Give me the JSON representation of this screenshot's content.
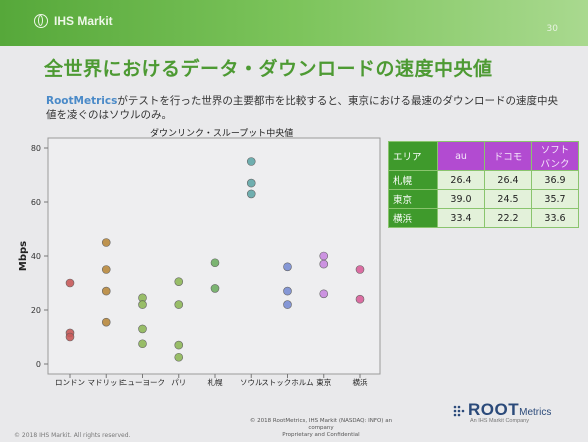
{
  "header": {
    "brand": "IHS Markit",
    "page_number": "30"
  },
  "title": "全世界におけるデータ・ダウンロードの速度中央値",
  "subtitle_brand": "RootMetrics",
  "subtitle_rest": "がテストを行った世界の主要都市を比較すると、東京における最速のダウンロードの速度中央値を凌ぐのはソウルのみ。",
  "chart_data": {
    "type": "scatter",
    "title": "ダウンリンク・スループット中央値",
    "ylabel": "Mbps",
    "ylim": [
      0,
      80
    ],
    "yticks": [
      0,
      20,
      40,
      60,
      80
    ],
    "grid": false,
    "categories": [
      "ロンドン",
      "マドリッド",
      "ニューヨーク",
      "パリ",
      "札幌",
      "ソウル",
      "ストックホルム",
      "東京",
      "横浜"
    ],
    "series": [
      {
        "color": "#c85a5a",
        "points": [
          [
            0,
            30
          ],
          [
            0,
            11.5
          ],
          [
            0,
            10
          ]
        ]
      },
      {
        "color": "#b98a3e",
        "points": [
          [
            1,
            45
          ],
          [
            1,
            35
          ],
          [
            1,
            27
          ],
          [
            1,
            15.5
          ]
        ]
      },
      {
        "color": "#8fb85a",
        "points": [
          [
            2,
            24.5
          ],
          [
            2,
            22
          ],
          [
            2,
            13
          ],
          [
            2,
            7.5
          ]
        ]
      },
      {
        "color": "#8fb85a",
        "points": [
          [
            3,
            30.5
          ],
          [
            3,
            22
          ],
          [
            3,
            7
          ],
          [
            3,
            2.5
          ]
        ]
      },
      {
        "color": "#6fae64",
        "points": [
          [
            4,
            37.5
          ],
          [
            4,
            28
          ]
        ]
      },
      {
        "color": "#62a8a8",
        "points": [
          [
            5,
            75
          ],
          [
            5,
            67
          ],
          [
            5,
            63
          ]
        ]
      },
      {
        "color": "#7a8ed4",
        "points": [
          [
            6,
            36
          ],
          [
            6,
            27
          ],
          [
            6,
            22
          ]
        ]
      },
      {
        "color": "#c98ae0",
        "points": [
          [
            7,
            40
          ],
          [
            7,
            37
          ],
          [
            7,
            26
          ]
        ]
      },
      {
        "color": "#d9609a",
        "points": [
          [
            8,
            35
          ],
          [
            8,
            24
          ]
        ]
      }
    ]
  },
  "table": {
    "headers": [
      "エリア",
      "au",
      "ドコモ",
      "ソフトバンク"
    ],
    "rows": [
      {
        "region": "札幌",
        "values": [
          "26.4",
          "26.4",
          "36.9"
        ]
      },
      {
        "region": "東京",
        "values": [
          "39.0",
          "24.5",
          "35.7"
        ]
      },
      {
        "region": "横浜",
        "values": [
          "33.4",
          "22.2",
          "33.6"
        ]
      }
    ]
  },
  "footer": {
    "copyright_line1": "© 2018 RootMetrics, IHS Markit (NASDAQ: INFO) an company",
    "copyright_line2": "Proprietary and Confidential",
    "left": "© 2018 IHS Markit. All rights reserved.",
    "logo_root": "ROOT",
    "logo_metrics": "Metrics",
    "logo_tag": "An IHS Markit Company"
  }
}
